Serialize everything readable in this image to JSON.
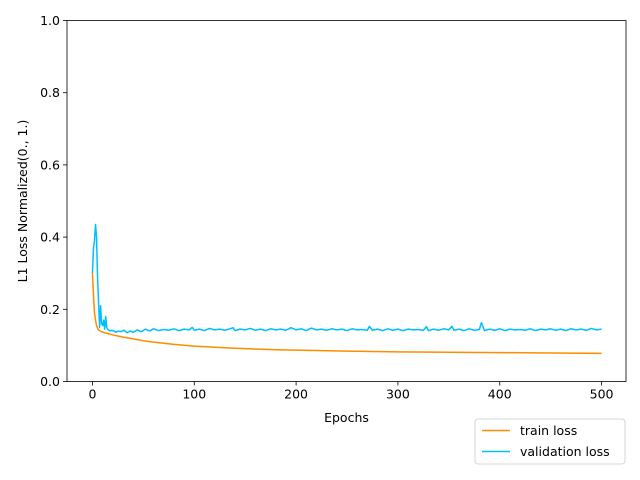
{
  "chart_data": {
    "type": "line",
    "title": "",
    "xlabel": "Epochs",
    "ylabel": "L1 Loss Normalized(0., 1.)",
    "xlim": [
      -25,
      524
    ],
    "ylim": [
      0.0,
      1.0
    ],
    "xticks": [
      0,
      100,
      200,
      300,
      400,
      500
    ],
    "yticks": [
      0.0,
      0.2,
      0.4,
      0.6,
      0.8,
      1.0
    ],
    "xtick_labels": [
      "0",
      "100",
      "200",
      "300",
      "400",
      "500"
    ],
    "ytick_labels": [
      "0.0",
      "0.2",
      "0.4",
      "0.6",
      "0.8",
      "1.0"
    ],
    "grid": false,
    "legend_position": "below-right",
    "series": [
      {
        "name": "train loss",
        "color": "#ff8c00",
        "x": [
          0,
          1,
          2,
          3,
          4,
          5,
          6,
          8,
          10,
          12,
          15,
          20,
          25,
          30,
          40,
          50,
          60,
          70,
          80,
          100,
          120,
          140,
          160,
          180,
          200,
          250,
          300,
          350,
          400,
          450,
          500
        ],
        "y": [
          0.3,
          0.24,
          0.19,
          0.17,
          0.155,
          0.148,
          0.143,
          0.139,
          0.137,
          0.135,
          0.133,
          0.129,
          0.126,
          0.123,
          0.118,
          0.113,
          0.109,
          0.106,
          0.103,
          0.098,
          0.095,
          0.092,
          0.09,
          0.088,
          0.087,
          0.084,
          0.082,
          0.081,
          0.08,
          0.079,
          0.078
        ]
      },
      {
        "name": "validation loss",
        "color": "#00bfff",
        "x": [
          0,
          1,
          2,
          3,
          4,
          5,
          6,
          7,
          8,
          9,
          10,
          11,
          12,
          13,
          14,
          15,
          17,
          19,
          21,
          23,
          25,
          28,
          31,
          34,
          37,
          40,
          44,
          48,
          52,
          56,
          60,
          65,
          70,
          75,
          80,
          85,
          90,
          95,
          98,
          100,
          105,
          110,
          115,
          120,
          125,
          130,
          135,
          138,
          140,
          145,
          150,
          155,
          160,
          165,
          170,
          175,
          180,
          185,
          190,
          195,
          200,
          205,
          210,
          215,
          220,
          225,
          230,
          235,
          240,
          245,
          250,
          255,
          260,
          265,
          270,
          272,
          275,
          280,
          285,
          290,
          295,
          300,
          305,
          310,
          315,
          320,
          325,
          328,
          330,
          335,
          340,
          345,
          350,
          353,
          355,
          360,
          365,
          370,
          375,
          380,
          382,
          385,
          390,
          395,
          400,
          405,
          410,
          415,
          420,
          425,
          430,
          435,
          440,
          445,
          450,
          455,
          460,
          465,
          470,
          475,
          480,
          485,
          490,
          495,
          500
        ],
        "y": [
          0.3,
          0.37,
          0.39,
          0.435,
          0.4,
          0.29,
          0.22,
          0.15,
          0.21,
          0.16,
          0.155,
          0.17,
          0.145,
          0.18,
          0.15,
          0.145,
          0.14,
          0.142,
          0.14,
          0.136,
          0.14,
          0.138,
          0.142,
          0.135,
          0.14,
          0.136,
          0.143,
          0.138,
          0.145,
          0.14,
          0.146,
          0.141,
          0.144,
          0.142,
          0.146,
          0.141,
          0.145,
          0.143,
          0.15,
          0.142,
          0.145,
          0.141,
          0.147,
          0.143,
          0.145,
          0.142,
          0.146,
          0.149,
          0.141,
          0.145,
          0.143,
          0.147,
          0.142,
          0.145,
          0.141,
          0.146,
          0.143,
          0.145,
          0.142,
          0.149,
          0.143,
          0.146,
          0.141,
          0.148,
          0.143,
          0.145,
          0.142,
          0.146,
          0.143,
          0.145,
          0.141,
          0.146,
          0.143,
          0.144,
          0.142,
          0.153,
          0.142,
          0.145,
          0.141,
          0.146,
          0.142,
          0.145,
          0.141,
          0.145,
          0.143,
          0.144,
          0.142,
          0.152,
          0.141,
          0.145,
          0.142,
          0.146,
          0.143,
          0.153,
          0.142,
          0.145,
          0.141,
          0.146,
          0.142,
          0.144,
          0.163,
          0.141,
          0.145,
          0.142,
          0.146,
          0.141,
          0.145,
          0.143,
          0.144,
          0.142,
          0.146,
          0.141,
          0.145,
          0.143,
          0.146,
          0.142,
          0.145,
          0.141,
          0.146,
          0.143,
          0.145,
          0.142,
          0.147,
          0.143,
          0.145
        ]
      }
    ]
  }
}
